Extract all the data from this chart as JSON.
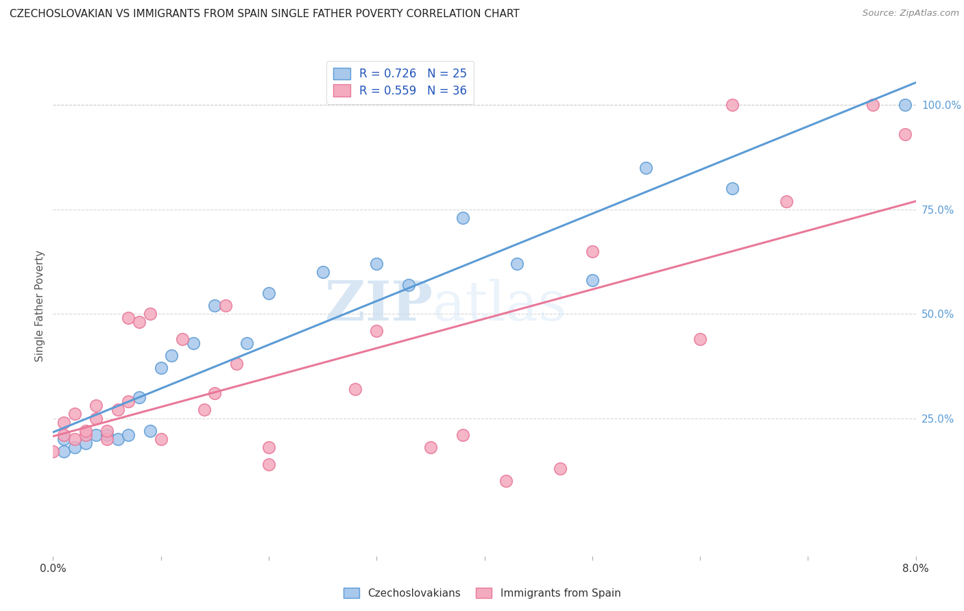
{
  "title": "CZECHOSLOVAKIAN VS IMMIGRANTS FROM SPAIN SINGLE FATHER POVERTY CORRELATION CHART",
  "source": "Source: ZipAtlas.com",
  "ylabel": "Single Father Poverty",
  "ytick_labels": [
    "25.0%",
    "50.0%",
    "75.0%",
    "100.0%"
  ],
  "ytick_positions": [
    0.25,
    0.5,
    0.75,
    1.0
  ],
  "xlim": [
    0.0,
    0.08
  ],
  "ylim": [
    -0.08,
    1.12
  ],
  "legend_labels": [
    "Czechoslovakians",
    "Immigrants from Spain"
  ],
  "legend_R_N_blue": "R = 0.726   N = 25",
  "legend_R_N_pink": "R = 0.559   N = 36",
  "blue_color": "#A8C8EC",
  "pink_color": "#F4AABF",
  "blue_line_color": "#5B9BD5",
  "pink_line_color": "#E87899",
  "watermark_zip": "ZIP",
  "watermark_atlas": "atlas",
  "grid_color": "#CCCCCC",
  "background_color": "#FFFFFF",
  "blue_x": [
    0.001,
    0.001,
    0.002,
    0.003,
    0.004,
    0.005,
    0.006,
    0.007,
    0.008,
    0.009,
    0.01,
    0.011,
    0.013,
    0.015,
    0.018,
    0.02,
    0.025,
    0.03,
    0.033,
    0.038,
    0.043,
    0.05,
    0.055,
    0.063,
    0.079
  ],
  "blue_y": [
    0.17,
    0.2,
    0.18,
    0.19,
    0.21,
    0.21,
    0.2,
    0.21,
    0.3,
    0.22,
    0.37,
    0.4,
    0.43,
    0.52,
    0.43,
    0.55,
    0.6,
    0.62,
    0.57,
    0.73,
    0.62,
    0.58,
    0.85,
    0.8,
    1.0
  ],
  "pink_x": [
    0.0,
    0.001,
    0.001,
    0.002,
    0.002,
    0.003,
    0.003,
    0.004,
    0.004,
    0.005,
    0.005,
    0.006,
    0.007,
    0.007,
    0.008,
    0.009,
    0.01,
    0.012,
    0.014,
    0.015,
    0.016,
    0.017,
    0.02,
    0.02,
    0.028,
    0.03,
    0.035,
    0.038,
    0.042,
    0.047,
    0.05,
    0.06,
    0.063,
    0.068,
    0.076,
    0.079
  ],
  "pink_y": [
    0.17,
    0.21,
    0.24,
    0.2,
    0.26,
    0.21,
    0.22,
    0.25,
    0.28,
    0.2,
    0.22,
    0.27,
    0.29,
    0.49,
    0.48,
    0.5,
    0.2,
    0.44,
    0.27,
    0.31,
    0.52,
    0.38,
    0.14,
    0.18,
    0.32,
    0.46,
    0.18,
    0.21,
    0.1,
    0.13,
    0.65,
    0.44,
    1.0,
    0.77,
    1.0,
    0.93
  ],
  "xtick_positions": [
    0.0,
    0.01,
    0.02,
    0.03,
    0.04,
    0.05,
    0.06,
    0.07,
    0.08
  ]
}
